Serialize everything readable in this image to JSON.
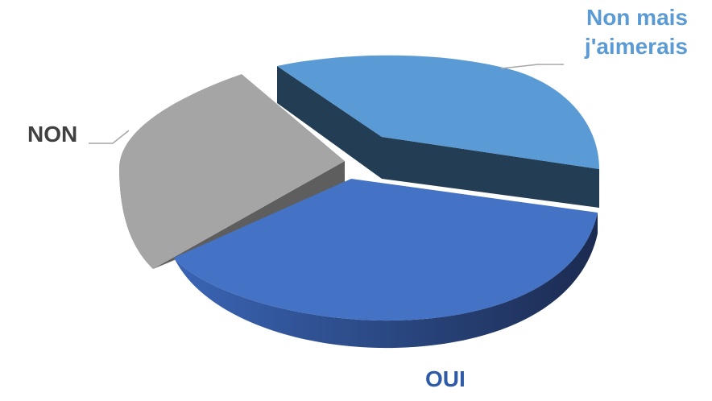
{
  "chart_data": {
    "type": "pie",
    "title": "",
    "style": "3d-exploded",
    "slices": [
      {
        "label": "Non mais j'aimerais",
        "label_lines": [
          "Non mais",
          "j'aimerais"
        ],
        "value": 38,
        "color": "#5b9bd5",
        "side_color": "#223d54",
        "label_color": "#5b9bd5"
      },
      {
        "label": "OUI",
        "value": 36,
        "color": "#4472c4",
        "side_color": "#1e3260",
        "label_color": "#2e5aa8"
      },
      {
        "label": "NON",
        "value": 26,
        "color": "#a5a5a5",
        "side_color": "#595959",
        "label_color": "#404040"
      }
    ]
  }
}
